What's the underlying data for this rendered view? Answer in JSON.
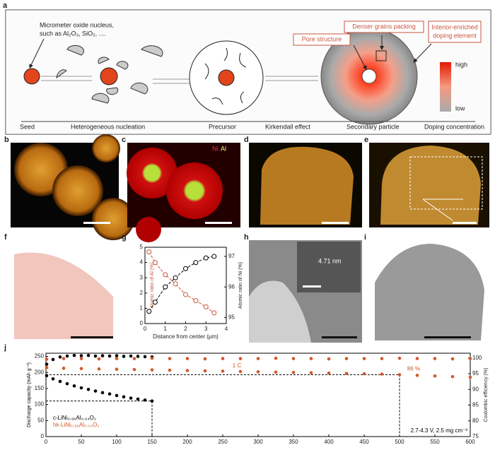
{
  "panel_labels": [
    "a",
    "b",
    "c",
    "d",
    "e",
    "f",
    "g",
    "h",
    "i",
    "j"
  ],
  "schematic": {
    "nucleus_note": [
      "Micrometer oxide nucleus,",
      "such as Al₂O₃, SiO₂, ...."
    ],
    "stages": [
      "Seed",
      "Heterogeneous nucleation",
      "Precursor",
      "Kirkendall effect",
      "Secondary particle",
      "Doping concentration"
    ],
    "callouts": [
      "Denser grains packing",
      "Pore structure"
    ],
    "doping_note": [
      "Interior-enriched",
      "doping element"
    ],
    "scale": [
      "high",
      "low"
    ]
  },
  "images": {
    "c_legend": [
      "Ni",
      "Al"
    ],
    "h_spacing": "4.71 nm"
  },
  "chart_data": [
    {
      "type": "scatter",
      "xlabel": "Distance from center (μm)",
      "ylabel": "Atomic ratio of Al (%)",
      "y2label": "Atomic ratio of Ni (%)",
      "xlim": [
        0,
        4
      ],
      "xticks": [
        0,
        1,
        2,
        3,
        4
      ],
      "ylim": [
        0,
        5
      ],
      "yticks": [
        0,
        1,
        2,
        3,
        4,
        5
      ],
      "y2lim": [
        94.8,
        97.3
      ],
      "y2ticks": [
        95,
        96,
        97
      ],
      "series": [
        {
          "color": "#c8553d",
          "x": [
            0.2,
            0.5,
            1.0,
            1.5,
            2.0,
            2.5,
            3.0,
            3.4
          ],
          "values": [
            4.7,
            4.0,
            3.2,
            2.6,
            1.9,
            1.5,
            1.1,
            0.7
          ]
        },
        {
          "color": "#000000",
          "axis": "y2",
          "x": [
            0.2,
            0.5,
            1.0,
            1.5,
            2.0,
            2.5,
            3.0,
            3.4
          ],
          "values": [
            95.2,
            95.5,
            96.0,
            96.3,
            96.6,
            96.8,
            96.95,
            97.0
          ]
        }
      ]
    },
    {
      "type": "scatter",
      "ylabel": "Discharge capacity (mAh g⁻¹)",
      "y2label": "Coulombic efficiency (%)",
      "xlim": [
        0,
        600
      ],
      "xticks": [
        0,
        50,
        100,
        150,
        200,
        250,
        300,
        350,
        400,
        450,
        500,
        550,
        600
      ],
      "ylim": [
        0,
        260
      ],
      "yticks": [
        0,
        50,
        100,
        150,
        200,
        250
      ],
      "y2lim": [
        75,
        101.5
      ],
      "y2ticks": [
        75,
        80,
        85,
        90,
        95,
        100
      ],
      "annotations": [
        "1 C",
        "86 %",
        "2.7-4.3 V, 2.5 mg cm⁻²"
      ],
      "ref_lines": [
        {
          "x": 150,
          "y": 111
        },
        {
          "x": 500,
          "y": 193
        }
      ],
      "series": [
        {
          "name": "c-LiNi₀.₉₆Al₀.₀₄O₂",
          "color": "#000000",
          "x": [
            1,
            10,
            20,
            30,
            40,
            50,
            60,
            70,
            80,
            90,
            100,
            110,
            120,
            130,
            140,
            150
          ],
          "values": [
            190,
            180,
            172,
            165,
            158,
            152,
            147,
            142,
            137,
            133,
            128,
            124,
            120,
            117,
            114,
            111
          ]
        },
        {
          "name": "hk-LiNi₀.₉₆Al₀.₀₄O₂",
          "color": "#d2582a",
          "x": [
            1,
            25,
            50,
            75,
            100,
            125,
            150,
            175,
            200,
            225,
            250,
            275,
            300,
            325,
            350,
            375,
            400,
            425,
            450,
            475,
            500,
            525,
            550,
            575,
            600
          ],
          "values": [
            215,
            213,
            212,
            211,
            210,
            209,
            208,
            207,
            206,
            205,
            204,
            203,
            202,
            201,
            200,
            199,
            198,
            197,
            196,
            195,
            193,
            191,
            189,
            187,
            185
          ]
        },
        {
          "color": "#000000",
          "axis": "y2",
          "x": [
            1,
            10,
            20,
            30,
            40,
            50,
            60,
            70,
            80,
            90,
            100,
            110,
            120,
            130,
            140,
            150
          ],
          "values": [
            98,
            99.5,
            100.3,
            100.6,
            100.8,
            100.7,
            100.8,
            100.6,
            100.7,
            100.6,
            100.7,
            100.5,
            100.6,
            100.5,
            100.4,
            100.3
          ]
        },
        {
          "color": "#d2582a",
          "axis": "y2",
          "x": [
            1,
            25,
            50,
            75,
            100,
            125,
            150,
            175,
            200,
            225,
            250,
            275,
            300,
            325,
            350,
            375,
            400,
            425,
            450,
            475,
            500,
            525,
            550,
            575,
            600
          ],
          "values": [
            99.6,
            99.8,
            99.8,
            99.7,
            99.8,
            99.8,
            99.9,
            99.8,
            99.8,
            99.7,
            99.8,
            99.8,
            99.8,
            99.9,
            99.8,
            99.8,
            99.7,
            99.8,
            99.8,
            99.8,
            99.9,
            99.8,
            99.8,
            99.7,
            99.8
          ]
        }
      ]
    }
  ]
}
